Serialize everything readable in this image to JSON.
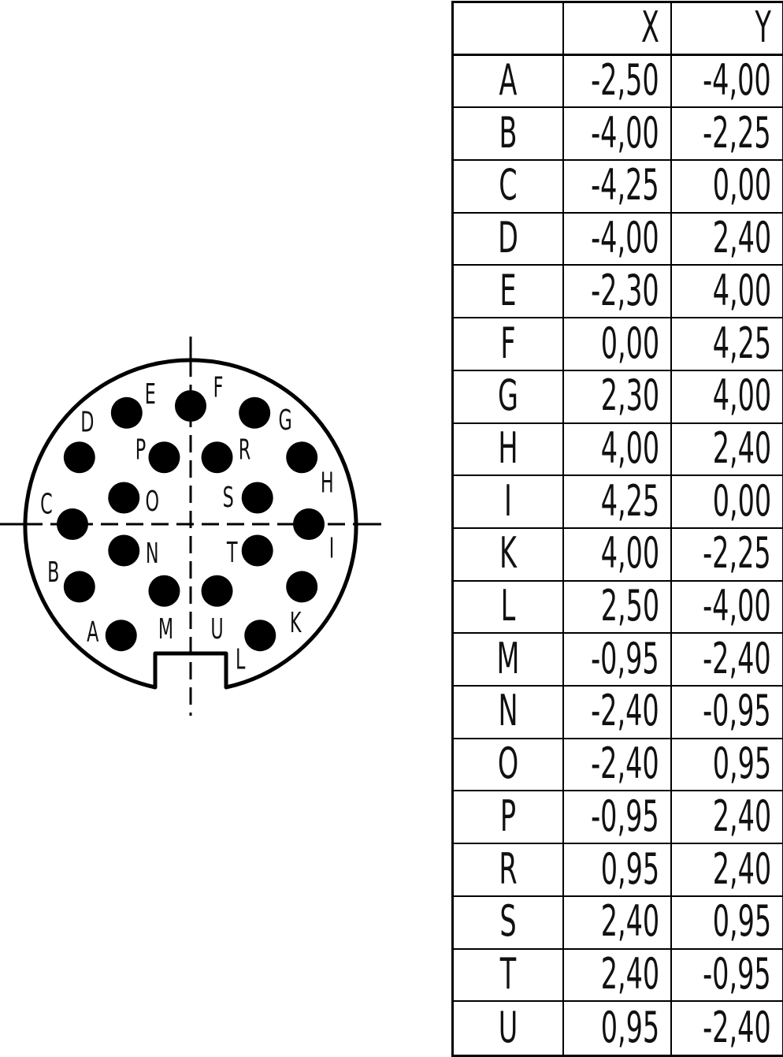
{
  "table": {
    "headers": [
      "",
      "X",
      "Y"
    ],
    "rows": [
      {
        "pin": "A",
        "x": "-2,50",
        "y": "-4,00"
      },
      {
        "pin": "B",
        "x": "-4,00",
        "y": "-2,25"
      },
      {
        "pin": "C",
        "x": "-4,25",
        "y": "0,00"
      },
      {
        "pin": "D",
        "x": "-4,00",
        "y": "2,40"
      },
      {
        "pin": "E",
        "x": "-2,30",
        "y": "4,00"
      },
      {
        "pin": "F",
        "x": "0,00",
        "y": "4,25"
      },
      {
        "pin": "G",
        "x": "2,30",
        "y": "4,00"
      },
      {
        "pin": "H",
        "x": "4,00",
        "y": "2,40"
      },
      {
        "pin": "I",
        "x": "4,25",
        "y": "0,00"
      },
      {
        "pin": "K",
        "x": "4,00",
        "y": "-2,25"
      },
      {
        "pin": "L",
        "x": "2,50",
        "y": "-4,00"
      },
      {
        "pin": "M",
        "x": "-0,95",
        "y": "-2,40"
      },
      {
        "pin": "N",
        "x": "-2,40",
        "y": "-0,95"
      },
      {
        "pin": "O",
        "x": "-2,40",
        "y": "0,95"
      },
      {
        "pin": "P",
        "x": "-0,95",
        "y": "2,40"
      },
      {
        "pin": "R",
        "x": "0,95",
        "y": "2,40"
      },
      {
        "pin": "S",
        "x": "2,40",
        "y": "0,95"
      },
      {
        "pin": "T",
        "x": "2,40",
        "y": "-0,95"
      },
      {
        "pin": "U",
        "x": "0,95",
        "y": "-2,40"
      }
    ]
  },
  "diagram": {
    "pins": [
      {
        "label": "A",
        "x": -2.5,
        "y": -4.0
      },
      {
        "label": "B",
        "x": -4.0,
        "y": -2.25
      },
      {
        "label": "C",
        "x": -4.25,
        "y": 0.0
      },
      {
        "label": "D",
        "x": -4.0,
        "y": 2.4
      },
      {
        "label": "E",
        "x": -2.3,
        "y": 4.0
      },
      {
        "label": "F",
        "x": 0.0,
        "y": 4.25
      },
      {
        "label": "G",
        "x": 2.3,
        "y": 4.0
      },
      {
        "label": "H",
        "x": 4.0,
        "y": 2.4
      },
      {
        "label": "I",
        "x": 4.25,
        "y": 0.0
      },
      {
        "label": "K",
        "x": 4.0,
        "y": -2.25
      },
      {
        "label": "L",
        "x": 2.5,
        "y": -4.0
      },
      {
        "label": "M",
        "x": -0.95,
        "y": -2.4
      },
      {
        "label": "N",
        "x": -2.4,
        "y": -0.95
      },
      {
        "label": "O",
        "x": -2.4,
        "y": 0.95
      },
      {
        "label": "P",
        "x": -0.95,
        "y": 2.4
      },
      {
        "label": "R",
        "x": 0.95,
        "y": 2.4
      },
      {
        "label": "S",
        "x": 2.4,
        "y": 0.95
      },
      {
        "label": "T",
        "x": 2.4,
        "y": -0.95
      },
      {
        "label": "U",
        "x": 0.95,
        "y": -2.4
      }
    ]
  }
}
